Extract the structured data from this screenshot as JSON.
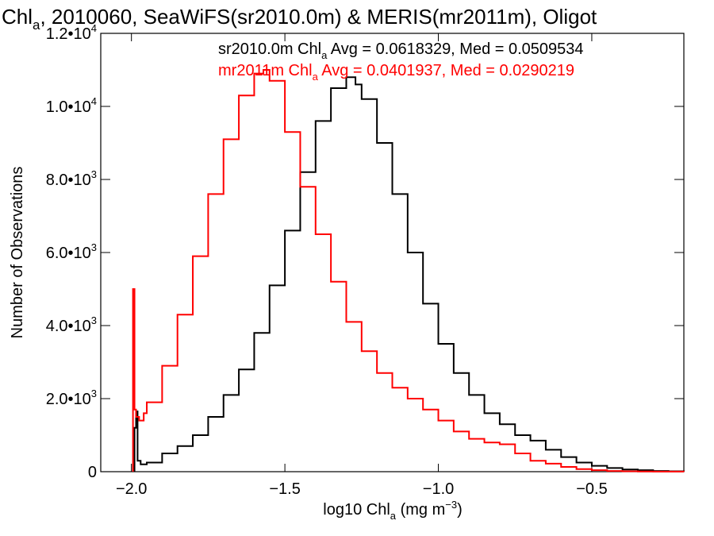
{
  "chart_data": {
    "type": "line",
    "title": {
      "pre": "Chl",
      "sub": "a",
      "post": ", 2010060, SeaWiFS(sr2010.0m) & MERIS(mr2011m), Oligot"
    },
    "xlabel": {
      "pre": "log10 Chl",
      "sub": "a",
      "mid": " (mg m",
      "sup": "−3",
      "post": ")"
    },
    "ylabel": "Number of Observations",
    "xlim": [
      -2.1,
      -0.2
    ],
    "ylim": [
      0,
      12000
    ],
    "x_ticks": [
      {
        "value": -2.0,
        "label": "−2.0"
      },
      {
        "value": -1.5,
        "label": "−1.5"
      },
      {
        "value": -1.0,
        "label": "−1.0"
      },
      {
        "value": -0.5,
        "label": "−0.5"
      }
    ],
    "y_ticks": [
      {
        "value": 0,
        "label": "0",
        "exp": ""
      },
      {
        "value": 2000,
        "label": "2.0•10",
        "exp": "3"
      },
      {
        "value": 4000,
        "label": "4.0•10",
        "exp": "3"
      },
      {
        "value": 6000,
        "label": "6.0•10",
        "exp": "3"
      },
      {
        "value": 8000,
        "label": "8.0•10",
        "exp": "3"
      },
      {
        "value": 10000,
        "label": "1.0•10",
        "exp": "4"
      },
      {
        "value": 12000,
        "label": "1.2•10",
        "exp": "4"
      }
    ],
    "grid": false,
    "annotations": [
      {
        "pre": "sr2010.0m Chl",
        "sub": "a",
        "post": " Avg = 0.0618329, Med = 0.0509534",
        "color": "#000000"
      },
      {
        "pre": "mr2011m Chl",
        "sub": "a",
        "post": " Avg = 0.0401937, Med = 0.0290219",
        "color": "#ff0000"
      }
    ],
    "series": [
      {
        "color": "#000000",
        "style": "step",
        "x": [
          -1.99,
          -1.985,
          -1.98,
          -1.97,
          -1.95,
          -1.9,
          -1.85,
          -1.8,
          -1.75,
          -1.7,
          -1.65,
          -1.6,
          -1.55,
          -1.5,
          -1.45,
          -1.4,
          -1.35,
          -1.3,
          -1.27,
          -1.25,
          -1.2,
          -1.15,
          -1.1,
          -1.05,
          -1.0,
          -0.95,
          -0.9,
          -0.85,
          -0.8,
          -0.75,
          -0.7,
          -0.65,
          -0.6,
          -0.55,
          -0.5,
          -0.45,
          -0.4,
          -0.35,
          -0.3,
          -0.25,
          -0.2
        ],
        "y": [
          1200,
          1650,
          300,
          200,
          250,
          500,
          700,
          1000,
          1500,
          2100,
          2800,
          3800,
          5100,
          6600,
          8200,
          9600,
          10500,
          10800,
          10600,
          10200,
          9000,
          7600,
          6000,
          4600,
          3500,
          2700,
          2100,
          1600,
          1300,
          1000,
          850,
          600,
          400,
          250,
          160,
          100,
          60,
          40,
          20,
          10,
          5
        ]
      },
      {
        "color": "#ff0000",
        "style": "step",
        "x": [
          -1.995,
          -1.99,
          -1.985,
          -1.975,
          -1.96,
          -1.95,
          -1.9,
          -1.85,
          -1.8,
          -1.75,
          -1.7,
          -1.65,
          -1.6,
          -1.57,
          -1.55,
          -1.5,
          -1.45,
          -1.4,
          -1.35,
          -1.3,
          -1.25,
          -1.2,
          -1.15,
          -1.1,
          -1.05,
          -1.0,
          -0.95,
          -0.9,
          -0.85,
          -0.8,
          -0.75,
          -0.7,
          -0.65,
          -0.6,
          -0.55,
          -0.5,
          -0.45,
          -0.4,
          -0.35,
          -0.3,
          -0.25,
          -0.2
        ],
        "y": [
          5000,
          1700,
          1500,
          1400,
          1600,
          1900,
          2900,
          4300,
          5900,
          7600,
          9100,
          10300,
          10900,
          11000,
          10700,
          9300,
          7800,
          6500,
          5200,
          4100,
          3300,
          2700,
          2300,
          2000,
          1700,
          1400,
          1100,
          900,
          800,
          750,
          500,
          300,
          220,
          130,
          70,
          40,
          20,
          10,
          5,
          3,
          2,
          1
        ]
      }
    ]
  }
}
